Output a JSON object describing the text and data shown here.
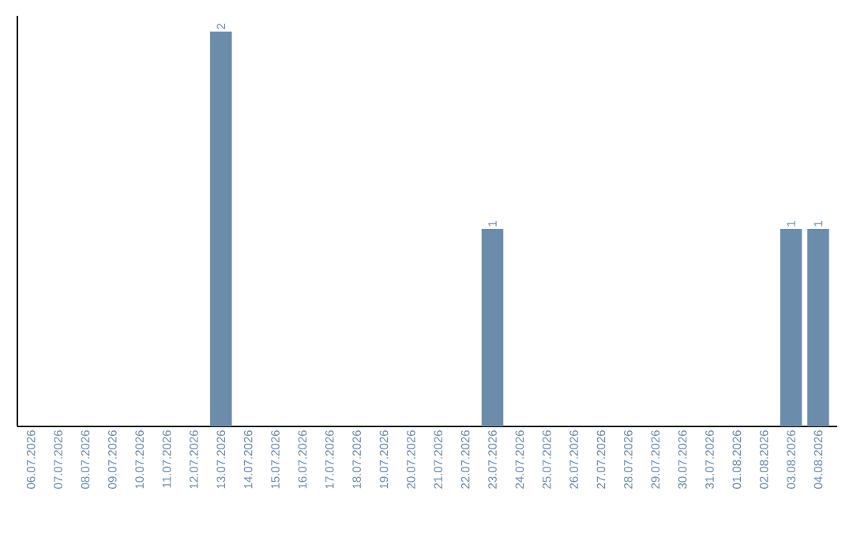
{
  "chart_data": {
    "type": "bar",
    "categories": [
      "06.07.2026",
      "07.07.2026",
      "08.07.2026",
      "09.07.2026",
      "10.07.2026",
      "11.07.2026",
      "12.07.2026",
      "13.07.2026",
      "14.07.2026",
      "15.07.2026",
      "16.07.2026",
      "17.07.2026",
      "18.07.2026",
      "19.07.2026",
      "20.07.2026",
      "21.07.2026",
      "22.07.2026",
      "23.07.2026",
      "24.07.2026",
      "25.07.2026",
      "26.07.2026",
      "27.07.2026",
      "28.07.2026",
      "29.07.2026",
      "30.07.2026",
      "31.07.2026",
      "01.08.2026",
      "02.08.2026",
      "03.08.2026",
      "04.08.2026"
    ],
    "values": [
      0,
      0,
      0,
      0,
      0,
      0,
      0,
      2,
      0,
      0,
      0,
      0,
      0,
      0,
      0,
      0,
      0,
      1,
      0,
      0,
      0,
      0,
      0,
      0,
      0,
      0,
      0,
      0,
      1,
      1
    ],
    "value_labels": [
      null,
      null,
      null,
      null,
      null,
      null,
      null,
      "2",
      null,
      null,
      null,
      null,
      null,
      null,
      null,
      null,
      null,
      "1",
      null,
      null,
      null,
      null,
      null,
      null,
      null,
      null,
      null,
      null,
      "1",
      "1"
    ],
    "color": "#6b8cab"
  }
}
